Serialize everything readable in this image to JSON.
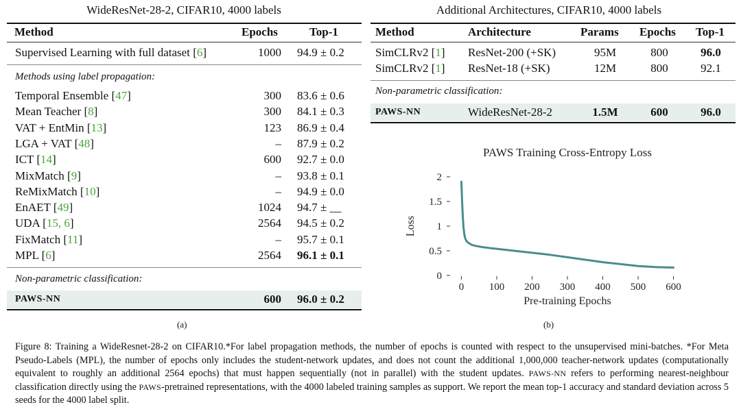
{
  "left_table": {
    "title": "WideResNet-28-2, CIFAR10, 4000 labels",
    "headers": {
      "method": "Method",
      "epochs": "Epochs",
      "top1": "Top-1"
    },
    "supervised": {
      "method": "Supervised Learning with full dataset",
      "cite": "6",
      "epochs": "1000",
      "top1": "94.9 ± 0.2"
    },
    "section_label": "Methods using label propagation:",
    "rows": [
      {
        "method": "Temporal Ensemble",
        "cite": "47",
        "epochs": "300",
        "top1": "83.6 ± 0.6"
      },
      {
        "method": "Mean Teacher",
        "cite": "8",
        "epochs": "300",
        "top1": "84.1 ± 0.3"
      },
      {
        "method": "VAT + EntMin",
        "cite": "13",
        "epochs": "123",
        "top1": "86.9 ± 0.4"
      },
      {
        "method": "LGA + VAT",
        "cite": "48",
        "epochs": "–",
        "top1": "87.9 ± 0.2"
      },
      {
        "method": "ICT",
        "cite": "14",
        "epochs": "600",
        "top1": "92.7 ± 0.0"
      },
      {
        "method": "MixMatch",
        "cite": "9",
        "epochs": "–",
        "top1": "93.8 ± 0.1"
      },
      {
        "method": "ReMixMatch",
        "cite": "10",
        "epochs": "–",
        "top1": "94.9 ± 0.0"
      },
      {
        "method": "EnAET",
        "cite": "49",
        "epochs": "1024",
        "top1": "94.7 ± __"
      },
      {
        "method": "UDA",
        "cite": "15, 6",
        "epochs": "2564",
        "top1": "94.5 ± 0.2"
      },
      {
        "method": "FixMatch",
        "cite": "11",
        "epochs": "–",
        "top1": "95.7 ± 0.1"
      },
      {
        "method": "MPL",
        "cite": "6",
        "epochs": "2564",
        "top1": "96.1 ± 0.1"
      }
    ],
    "nonparam_label": "Non-parametric classification:",
    "paws": {
      "method": "PAWS-NN",
      "epochs": "600",
      "top1": "96.0 ± 0.2"
    },
    "sublabel": "(a)"
  },
  "right_table": {
    "title": "Additional Architectures, CIFAR10, 4000 labels",
    "headers": {
      "method": "Method",
      "arch": "Architecture",
      "params": "Params",
      "epochs": "Epochs",
      "top1": "Top-1"
    },
    "rows": [
      {
        "method": "SimCLRv2",
        "cite": "1",
        "arch": "ResNet-200 (+SK)",
        "params": "95M",
        "epochs": "800",
        "top1": "96.0"
      },
      {
        "method": "SimCLRv2",
        "cite": "1",
        "arch": "ResNet-18 (+SK)",
        "params": "12M",
        "epochs": "800",
        "top1": "92.1"
      }
    ],
    "nonparam_label": "Non-parametric classification:",
    "paws": {
      "method": "PAWS-NN",
      "arch": "WideResNet-28-2",
      "params": "1.5M",
      "epochs": "600",
      "top1": "96.0"
    },
    "sublabel": "(b)"
  },
  "chart_data": {
    "type": "line",
    "title": "PAWS Training Cross-Entropy Loss",
    "xlabel": "Pre-training Epochs",
    "ylabel": "Loss",
    "xlim": [
      -30,
      630
    ],
    "ylim": [
      0,
      2
    ],
    "xticks": [
      0,
      100,
      200,
      300,
      400,
      500,
      600
    ],
    "yticks": [
      0,
      0.5,
      1,
      1.5,
      2
    ],
    "ytick_labels": [
      "0",
      "0.5",
      "1",
      "1.5",
      "2"
    ],
    "series": [
      {
        "name": "loss",
        "color": "#4a8c8c",
        "x": [
          0,
          2,
          4,
          6,
          8,
          10,
          14,
          20,
          30,
          40,
          60,
          80,
          100,
          150,
          200,
          250,
          300,
          350,
          400,
          450,
          500,
          550,
          600
        ],
        "y": [
          1.9,
          1.5,
          1.2,
          0.98,
          0.85,
          0.77,
          0.7,
          0.66,
          0.62,
          0.6,
          0.575,
          0.555,
          0.54,
          0.5,
          0.46,
          0.42,
          0.37,
          0.32,
          0.27,
          0.23,
          0.19,
          0.17,
          0.16
        ]
      }
    ],
    "sublabel": "(b)"
  },
  "caption": {
    "fig_label": "Figure 8:",
    "p1": "Training a WideResnet-28-2 on CIFAR10.*For label propagation methods, the number of epochs is counted with respect to the unsupervised mini-batches. *For Meta Pseudo-Labels (MPL), the number of epochs only includes the student-network updates, and does not count the additional 1,000,000 teacher-network updates (computationally equivalent to roughly an additional 2564 epochs) that must happen sequentially (not in parallel) with the student updates.",
    "paws_nn": "PAWS-NN",
    "p2": " refers to performing nearest-neighbour classification directly using the ",
    "paws": "PAWS",
    "p3": "-pretrained representations, with the 4000 labeled training samples as support. We report the mean top-1 accuracy and standard deviation across 5 seeds for the 4000 label split."
  }
}
